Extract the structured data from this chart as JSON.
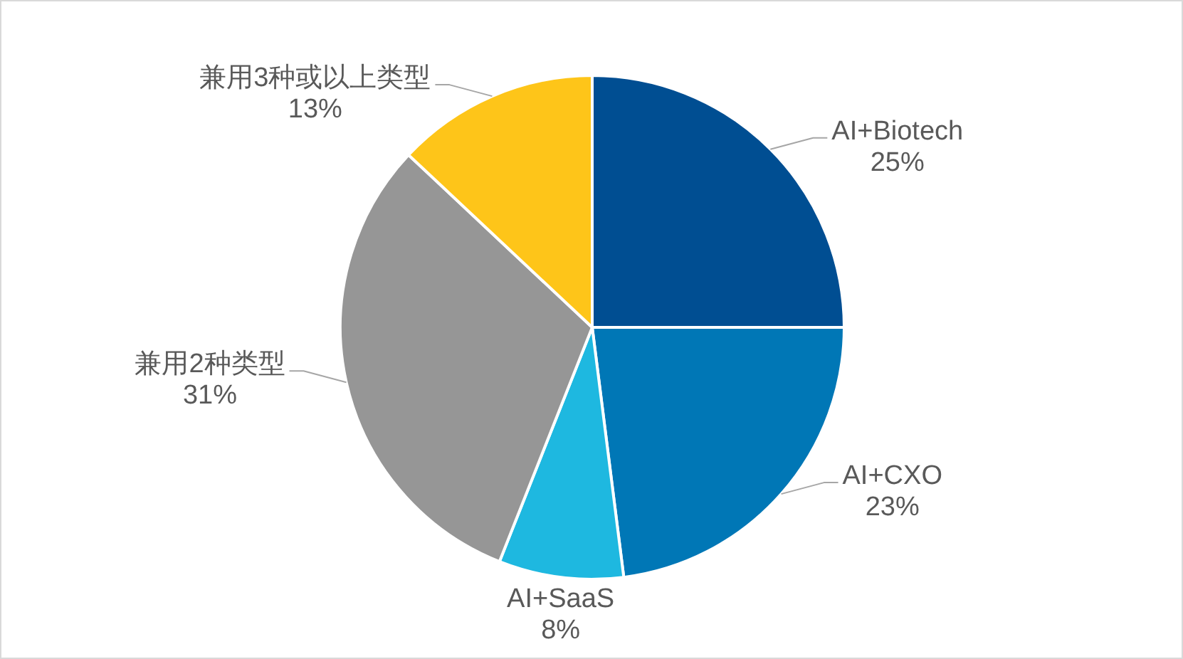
{
  "chart_data": {
    "type": "pie",
    "categories": [
      "AI+Biotech",
      "AI+CXO",
      "AI+SaaS",
      "兼用2种类型",
      "兼用3种或以上类型"
    ],
    "values": [
      25,
      23,
      8,
      31,
      13
    ],
    "colors": [
      "#004e92",
      "#0077b6",
      "#1eb8e0",
      "#969696",
      "#fec519"
    ],
    "value_labels": [
      "25%",
      "23%",
      "8%",
      "31%",
      "13%"
    ]
  }
}
